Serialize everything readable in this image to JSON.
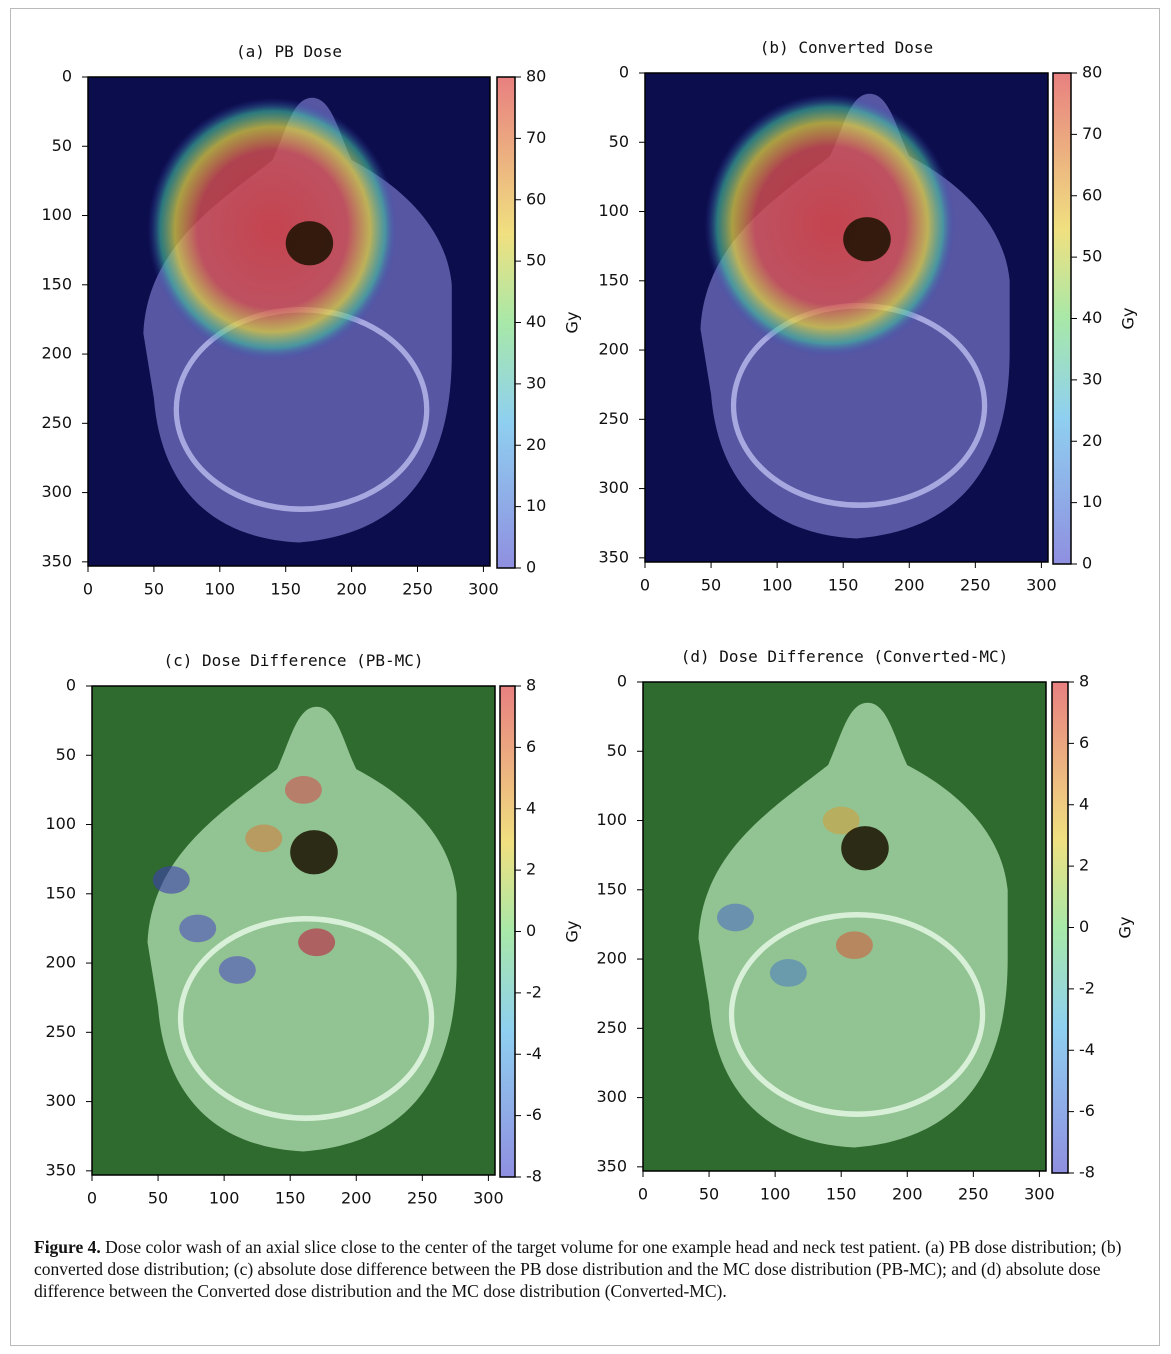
{
  "figure": {
    "panels": [
      {
        "title": "(a) PB Dose",
        "xlim": [
          0,
          305
        ],
        "ylim": [
          0,
          353
        ],
        "xticks": [
          0,
          50,
          100,
          150,
          200,
          250,
          300
        ],
        "yticks": [
          0,
          50,
          100,
          150,
          200,
          250,
          300,
          350
        ],
        "colorbar_lim": [
          0,
          80
        ],
        "colorbar_ticks": [
          0,
          10,
          20,
          30,
          40,
          50,
          60,
          70,
          80
        ],
        "colorbar_label": "Gy"
      },
      {
        "title": "(b) Converted Dose",
        "xlim": [
          0,
          305
        ],
        "ylim": [
          0,
          353
        ],
        "xticks": [
          0,
          50,
          100,
          150,
          200,
          250,
          300
        ],
        "yticks": [
          0,
          50,
          100,
          150,
          200,
          250,
          300,
          350
        ],
        "colorbar_lim": [
          0,
          80
        ],
        "colorbar_ticks": [
          0,
          10,
          20,
          30,
          40,
          50,
          60,
          70,
          80
        ],
        "colorbar_label": "Gy"
      },
      {
        "title": "(c) Dose Difference (PB-MC)",
        "xlim": [
          0,
          305
        ],
        "ylim": [
          0,
          353
        ],
        "xticks": [
          0,
          50,
          100,
          150,
          200,
          250,
          300
        ],
        "yticks": [
          0,
          50,
          100,
          150,
          200,
          250,
          300,
          350
        ],
        "colorbar_lim": [
          -8,
          8
        ],
        "colorbar_ticks": [
          -8,
          -6,
          -4,
          -2,
          0,
          2,
          4,
          6,
          8
        ],
        "colorbar_label": "Gy"
      },
      {
        "title": "(d) Dose Difference (Converted-MC)",
        "xlim": [
          0,
          305
        ],
        "ylim": [
          0,
          353
        ],
        "xticks": [
          0,
          50,
          100,
          150,
          200,
          250,
          300
        ],
        "yticks": [
          0,
          50,
          100,
          150,
          200,
          250,
          300,
          350
        ],
        "colorbar_lim": [
          -8,
          8
        ],
        "colorbar_ticks": [
          -8,
          -6,
          -4,
          -2,
          0,
          2,
          4,
          6,
          8
        ],
        "colorbar_label": "Gy"
      }
    ],
    "caption": {
      "label": "Figure 4.",
      "text": "Dose color wash of an axial slice close to the center of the target volume for one example head and neck test patient. (a) PB dose distribution; (b) converted dose distribution; (c) absolute dose difference between the PB dose distribution and the MC dose distribution (PB-MC); and (d) absolute dose difference between the Converted dose distribution and the MC dose distribution (Converted-MC)."
    }
  }
}
